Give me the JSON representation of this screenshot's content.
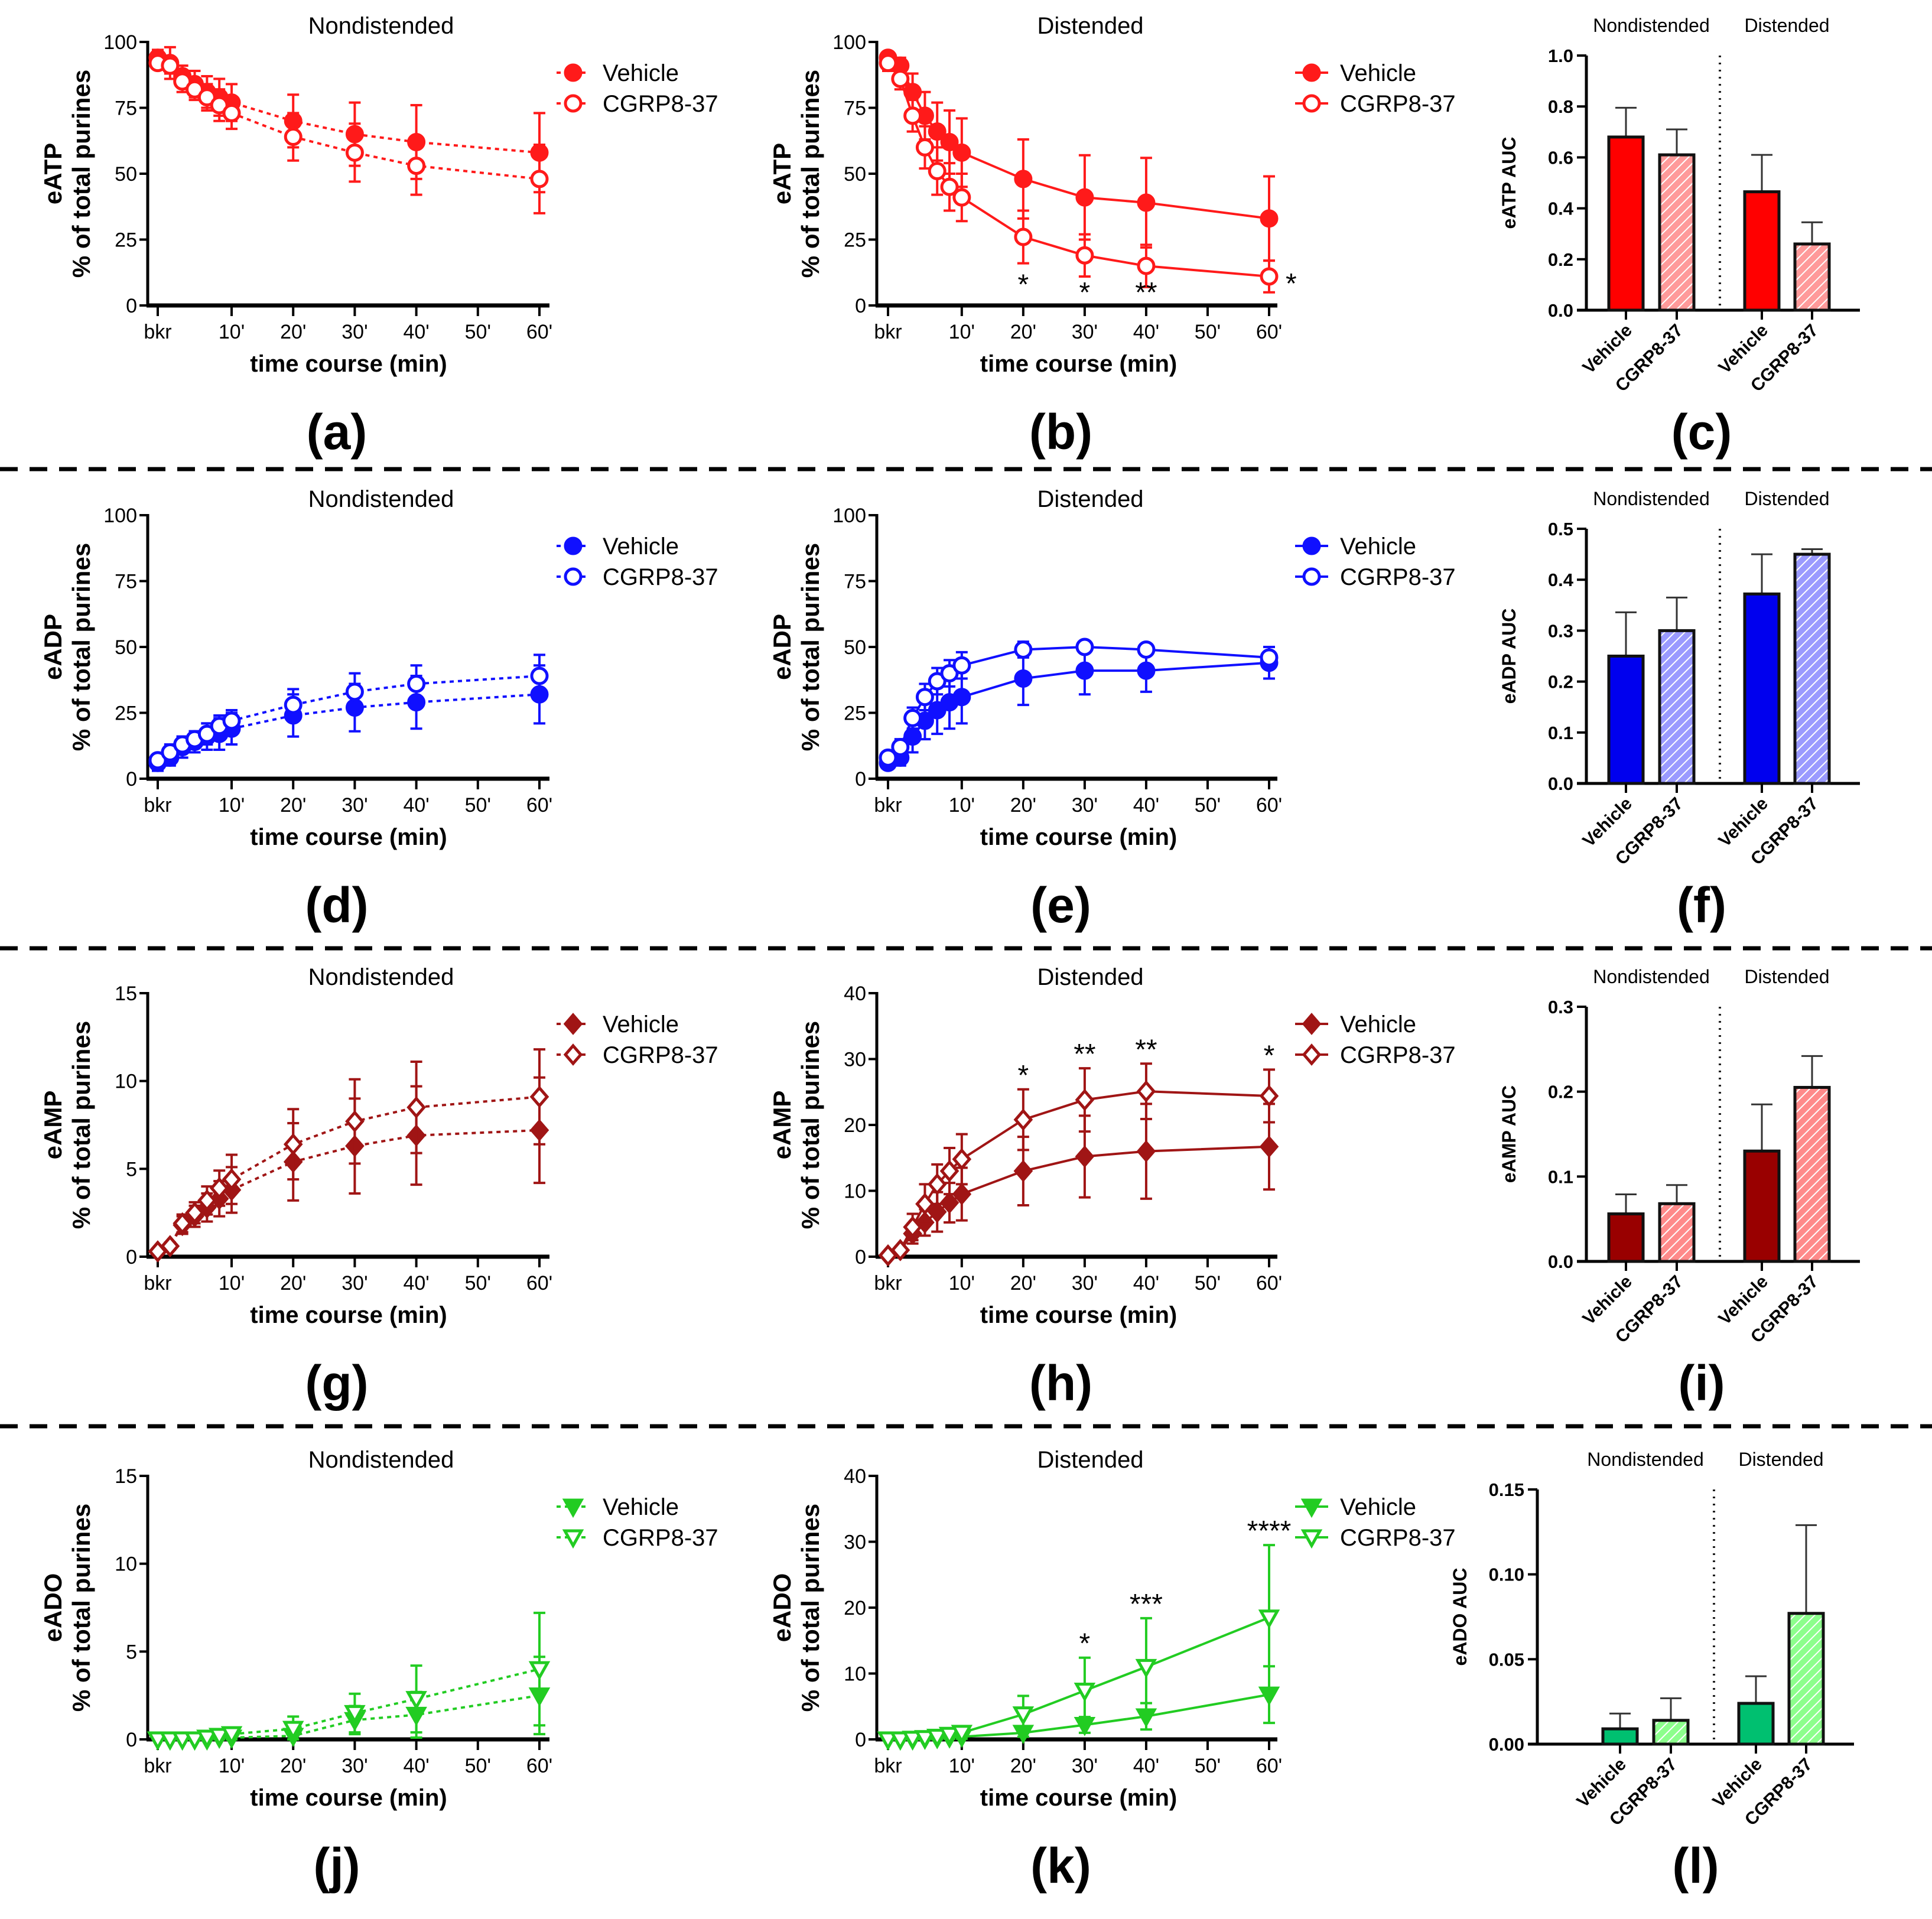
{
  "chart_data": [
    {
      "type": "line",
      "panel_label": "(a)",
      "title": "Nondistended",
      "ylabel": "eATP",
      "ylabel2": "% of total purines",
      "xlabel": "time course (min)",
      "x": [
        -2,
        0,
        2,
        4,
        6,
        8,
        10,
        20,
        30,
        40,
        60
      ],
      "x_ticks": [
        -2,
        10,
        20,
        30,
        40,
        50,
        60
      ],
      "x_tick_labels": [
        "bkr",
        "10'",
        "20'",
        "30'",
        "40'",
        "50'",
        "60'"
      ],
      "ylim": [
        0,
        100
      ],
      "yticks": [
        0,
        25,
        50,
        75,
        100
      ],
      "line_style": "dotted",
      "marker": "circle",
      "color": "#ff1a1a",
      "series": [
        {
          "name": "Vehicle",
          "filled": true,
          "values": [
            94,
            92,
            87,
            84,
            81,
            79,
            77,
            70,
            65,
            62,
            58
          ],
          "sem": [
            3,
            6,
            4,
            5,
            6,
            7,
            7,
            10,
            12,
            14,
            15
          ]
        },
        {
          "name": "CGRP8-37",
          "filled": false,
          "values": [
            92,
            91,
            85,
            82,
            79,
            76,
            73,
            64,
            58,
            53,
            48
          ],
          "sem": [
            2,
            3,
            4,
            4,
            5,
            6,
            6,
            9,
            11,
            11,
            13
          ]
        }
      ],
      "annotations": []
    },
    {
      "type": "line",
      "panel_label": "(b)",
      "title": "Distended",
      "ylabel": "eATP",
      "ylabel2": "% of total purines",
      "xlabel": "time course (min)",
      "x": [
        -2,
        0,
        2,
        4,
        6,
        8,
        10,
        20,
        30,
        40,
        60
      ],
      "x_ticks": [
        -2,
        10,
        20,
        30,
        40,
        50,
        60
      ],
      "x_tick_labels": [
        "bkr",
        "10'",
        "20'",
        "30'",
        "40'",
        "50'",
        "60'"
      ],
      "ylim": [
        0,
        100
      ],
      "yticks": [
        0,
        25,
        50,
        75,
        100
      ],
      "line_style": "solid",
      "marker": "circle",
      "color": "#ff1a1a",
      "series": [
        {
          "name": "Vehicle",
          "filled": true,
          "values": [
            94,
            91,
            81,
            72,
            66,
            62,
            58,
            48,
            41,
            39,
            33
          ],
          "sem": [
            2,
            3,
            7,
            9,
            11,
            12,
            13,
            15,
            16,
            17,
            16
          ]
        },
        {
          "name": "CGRP8-37",
          "filled": false,
          "values": [
            92,
            86,
            72,
            60,
            51,
            45,
            41,
            26,
            19,
            15,
            11
          ],
          "sem": [
            3,
            4,
            6,
            8,
            9,
            9,
            9,
            10,
            8,
            8,
            6
          ]
        }
      ],
      "annotations": [
        {
          "x": 20,
          "text": "*",
          "position": "below"
        },
        {
          "x": 30,
          "text": "*",
          "position": "below"
        },
        {
          "x": 40,
          "text": "**",
          "position": "below"
        },
        {
          "x": 60,
          "text": "*",
          "position": "right"
        }
      ]
    },
    {
      "type": "bar",
      "panel_label": "(c)",
      "ylabel": "eATP AUC",
      "groups": [
        "Nondistended",
        "Distended"
      ],
      "categories": [
        "Vehicle",
        "CGRP8-37",
        "Vehicle",
        "CGRP8-37"
      ],
      "values": [
        0.68,
        0.61,
        0.465,
        0.26
      ],
      "sem": [
        0.115,
        0.1,
        0.145,
        0.085
      ],
      "hatched": [
        false,
        true,
        false,
        true
      ],
      "ylim": [
        0,
        1.0
      ],
      "yticks": [
        0,
        0.2,
        0.4,
        0.6,
        0.8,
        1.0
      ],
      "ytick_labels": [
        "0.0",
        "0.2",
        "0.4",
        "0.6",
        "0.8",
        "1.0"
      ],
      "color": "#ff0000",
      "hatch_color": "#ff9a9a"
    },
    {
      "type": "line",
      "panel_label": "(d)",
      "title": "Nondistended",
      "ylabel": "eADP",
      "ylabel2": "% of total purines",
      "xlabel": "time course (min)",
      "x": [
        -2,
        0,
        2,
        4,
        6,
        8,
        10,
        20,
        30,
        40,
        60
      ],
      "x_ticks": [
        -2,
        10,
        20,
        30,
        40,
        50,
        60
      ],
      "x_tick_labels": [
        "bkr",
        "10'",
        "20'",
        "30'",
        "40'",
        "50'",
        "60'"
      ],
      "ylim": [
        0,
        100
      ],
      "yticks": [
        0,
        25,
        50,
        75,
        100
      ],
      "line_style": "dotted",
      "marker": "circle",
      "color": "#1010ff",
      "series": [
        {
          "name": "Vehicle",
          "filled": true,
          "values": [
            6,
            8,
            12,
            14,
            16,
            17,
            19,
            24,
            27,
            29,
            32
          ],
          "sem": [
            3,
            3,
            4,
            4,
            5,
            6,
            6,
            8,
            9,
            10,
            11
          ]
        },
        {
          "name": "CGRP8-37",
          "filled": false,
          "values": [
            7,
            10,
            13,
            15,
            17,
            20,
            22,
            28,
            33,
            36,
            39
          ],
          "sem": [
            2,
            3,
            3,
            3,
            4,
            4,
            4,
            6,
            7,
            7,
            8
          ]
        }
      ],
      "annotations": []
    },
    {
      "type": "line",
      "panel_label": "(e)",
      "title": "Distended",
      "ylabel": "eADP",
      "ylabel2": "% of total purines",
      "xlabel": "time course (min)",
      "x": [
        -2,
        0,
        2,
        4,
        6,
        8,
        10,
        20,
        30,
        40,
        60
      ],
      "x_ticks": [
        -2,
        10,
        20,
        30,
        40,
        50,
        60
      ],
      "x_tick_labels": [
        "bkr",
        "10'",
        "20'",
        "30'",
        "40'",
        "50'",
        "60'"
      ],
      "ylim": [
        0,
        100
      ],
      "yticks": [
        0,
        25,
        50,
        75,
        100
      ],
      "line_style": "solid",
      "marker": "circle",
      "color": "#1010ff",
      "series": [
        {
          "name": "Vehicle",
          "filled": true,
          "values": [
            6,
            8,
            16,
            22,
            26,
            29,
            31,
            38,
            41,
            41,
            44
          ],
          "sem": [
            2,
            3,
            6,
            7,
            9,
            10,
            10,
            10,
            9,
            8,
            6
          ]
        },
        {
          "name": "CGRP8-37",
          "filled": false,
          "values": [
            8,
            12,
            23,
            31,
            37,
            40,
            43,
            49,
            50,
            49,
            46
          ],
          "sem": [
            2,
            3,
            4,
            5,
            5,
            5,
            5,
            3,
            2,
            2,
            4
          ]
        }
      ],
      "annotations": []
    },
    {
      "type": "bar",
      "panel_label": "(f)",
      "ylabel": "eADP AUC",
      "groups": [
        "Nondistended",
        "Distended"
      ],
      "categories": [
        "Vehicle",
        "CGRP8-37",
        "Vehicle",
        "CGRP8-37"
      ],
      "values": [
        0.25,
        0.3,
        0.372,
        0.45
      ],
      "sem": [
        0.086,
        0.065,
        0.078,
        0.01
      ],
      "hatched": [
        false,
        true,
        false,
        true
      ],
      "ylim": [
        0,
        0.5
      ],
      "yticks": [
        0,
        0.1,
        0.2,
        0.3,
        0.4,
        0.5
      ],
      "ytick_labels": [
        "0.0",
        "0.1",
        "0.2",
        "0.3",
        "0.4",
        "0.5"
      ],
      "color": "#0000ee",
      "hatch_color": "#9a9aff"
    },
    {
      "type": "line",
      "panel_label": "(g)",
      "title": "Nondistended",
      "ylabel": "eAMP",
      "ylabel2": "% of total purines",
      "xlabel": "time course (min)",
      "x": [
        -2,
        0,
        2,
        4,
        6,
        8,
        10,
        20,
        30,
        40,
        60
      ],
      "x_ticks": [
        -2,
        10,
        20,
        30,
        40,
        50,
        60
      ],
      "x_tick_labels": [
        "bkr",
        "10'",
        "20'",
        "30'",
        "40'",
        "50'",
        "60'"
      ],
      "ylim": [
        0,
        15
      ],
      "yticks": [
        0,
        5,
        10,
        15
      ],
      "line_style": "dotted",
      "marker": "diamond",
      "color": "#a01515",
      "series": [
        {
          "name": "Vehicle",
          "filled": true,
          "values": [
            0.3,
            0.6,
            1.8,
            2.3,
            2.8,
            3.3,
            3.8,
            5.4,
            6.3,
            6.9,
            7.2
          ],
          "sem": [
            0.1,
            0.2,
            0.5,
            0.6,
            0.8,
            1.0,
            1.3,
            2.2,
            2.7,
            2.8,
            3.0
          ]
        },
        {
          "name": "CGRP8-37",
          "filled": false,
          "values": [
            0.3,
            0.6,
            1.9,
            2.5,
            3.2,
            3.9,
            4.4,
            6.4,
            7.7,
            8.5,
            9.1
          ],
          "sem": [
            0.1,
            0.2,
            0.5,
            0.6,
            0.8,
            1.0,
            1.4,
            2.0,
            2.4,
            2.6,
            2.7
          ]
        }
      ],
      "annotations": []
    },
    {
      "type": "line",
      "panel_label": "(h)",
      "title": "Distended",
      "ylabel": "eAMP",
      "ylabel2": "% of total purines",
      "xlabel": "time course (min)",
      "x": [
        -2,
        0,
        2,
        4,
        6,
        8,
        10,
        20,
        30,
        40,
        60
      ],
      "x_ticks": [
        -2,
        10,
        20,
        30,
        40,
        50,
        60
      ],
      "x_tick_labels": [
        "bkr",
        "10'",
        "20'",
        "30'",
        "40'",
        "50'",
        "60'"
      ],
      "ylim": [
        0,
        40
      ],
      "yticks": [
        0,
        10,
        20,
        30,
        40
      ],
      "line_style": "solid",
      "marker": "diamond",
      "color": "#a01515",
      "series": [
        {
          "name": "Vehicle",
          "filled": true,
          "values": [
            0.2,
            1,
            3.5,
            5.2,
            6.8,
            8.2,
            9.5,
            13,
            15.2,
            16,
            16.7
          ],
          "sem": [
            0.1,
            0.5,
            1.5,
            2,
            3,
            3,
            4,
            5.2,
            6.2,
            7.2,
            6.5
          ]
        },
        {
          "name": "CGRP8-37",
          "filled": false,
          "values": [
            0.2,
            1,
            4.5,
            8,
            11,
            13,
            14.8,
            20.8,
            23.8,
            25.1,
            24.4
          ],
          "sem": [
            0.1,
            0.5,
            2,
            3,
            3,
            3.5,
            3.8,
            4.6,
            4.8,
            4.2,
            4
          ]
        }
      ],
      "annotations": [
        {
          "x": 20,
          "text": "*",
          "position": "above"
        },
        {
          "x": 30,
          "text": "**",
          "position": "above"
        },
        {
          "x": 40,
          "text": "**",
          "position": "above"
        },
        {
          "x": 60,
          "text": "*",
          "position": "above"
        }
      ]
    },
    {
      "type": "bar",
      "panel_label": "(i)",
      "ylabel": "eAMP AUC",
      "groups": [
        "Nondistended",
        "Distended"
      ],
      "categories": [
        "Vehicle",
        "CGRP8-37",
        "Vehicle",
        "CGRP8-37"
      ],
      "values": [
        0.056,
        0.068,
        0.13,
        0.205
      ],
      "sem": [
        0.023,
        0.022,
        0.055,
        0.037
      ],
      "hatched": [
        false,
        true,
        false,
        true
      ],
      "ylim": [
        0,
        0.3
      ],
      "yticks": [
        0,
        0.1,
        0.2,
        0.3
      ],
      "ytick_labels": [
        "0.0",
        "0.1",
        "0.2",
        "0.3"
      ],
      "color": "#990000",
      "hatch_color": "#ff8a8a"
    },
    {
      "type": "line",
      "panel_label": "(j)",
      "title": "Nondistended",
      "ylabel": "eADO",
      "ylabel2": "% of total purines",
      "xlabel": "time course (min)",
      "x": [
        -2,
        0,
        2,
        4,
        6,
        8,
        10,
        20,
        30,
        40,
        60
      ],
      "x_ticks": [
        -2,
        10,
        20,
        30,
        40,
        50,
        60
      ],
      "x_tick_labels": [
        "bkr",
        "10'",
        "20'",
        "30'",
        "40'",
        "50'",
        "60'"
      ],
      "ylim": [
        0,
        15
      ],
      "yticks": [
        0,
        5,
        10,
        15
      ],
      "line_style": "dotted",
      "marker": "triangle",
      "color": "#22cc22",
      "series": [
        {
          "name": "Vehicle",
          "filled": true,
          "values": [
            0,
            0,
            0,
            0,
            0,
            0.1,
            0.1,
            0.2,
            1.1,
            1.4,
            2.5
          ],
          "sem": [
            0.05,
            0.05,
            0.05,
            0.05,
            0.1,
            0.1,
            0.1,
            0.5,
            0.8,
            1.3,
            2.2
          ]
        },
        {
          "name": "CGRP8-37",
          "filled": false,
          "values": [
            0,
            0,
            0,
            0,
            0.1,
            0.2,
            0.3,
            0.6,
            1.5,
            2.3,
            4.0
          ],
          "sem": [
            0.05,
            0.05,
            0.05,
            0.1,
            0.1,
            0.1,
            0.1,
            0.7,
            1.1,
            1.9,
            3.2
          ]
        }
      ],
      "annotations": []
    },
    {
      "type": "line",
      "panel_label": "(k)",
      "title": "Distended",
      "ylabel": "eADO",
      "ylabel2": "% of total purines",
      "xlabel": "time course (min)",
      "x": [
        -2,
        0,
        2,
        4,
        6,
        8,
        10,
        20,
        30,
        40,
        60
      ],
      "x_ticks": [
        -2,
        10,
        20,
        30,
        40,
        50,
        60
      ],
      "x_tick_labels": [
        "bkr",
        "10'",
        "20'",
        "30'",
        "40'",
        "50'",
        "60'"
      ],
      "ylim": [
        0,
        40
      ],
      "yticks": [
        0,
        10,
        20,
        30,
        40
      ],
      "line_style": "solid",
      "marker": "triangle",
      "color": "#22cc22",
      "series": [
        {
          "name": "Vehicle",
          "filled": true,
          "values": [
            0,
            0,
            0,
            0.1,
            0.2,
            0.3,
            0.4,
            1.0,
            2.2,
            3.5,
            6.8
          ],
          "sem": [
            0.1,
            0.1,
            0.1,
            0.1,
            0.2,
            0.2,
            0.3,
            0.6,
            1.2,
            2.0,
            4.3
          ]
        },
        {
          "name": "CGRP8-37",
          "filled": false,
          "values": [
            0,
            0,
            0.1,
            0.2,
            0.4,
            0.7,
            1.0,
            3.8,
            7.4,
            11,
            18.5
          ],
          "sem": [
            0.1,
            0.1,
            0.1,
            0.2,
            0.3,
            0.4,
            0.6,
            2.8,
            5,
            7.4,
            11
          ]
        }
      ],
      "annotations": [
        {
          "x": 30,
          "text": "*",
          "position": "above"
        },
        {
          "x": 40,
          "text": "***",
          "position": "above"
        },
        {
          "x": 60,
          "text": "****",
          "position": "above"
        }
      ]
    },
    {
      "type": "bar",
      "panel_label": "(l)",
      "ylabel": "eADO AUC",
      "groups": [
        "Nondistended",
        "Distended"
      ],
      "categories": [
        "Vehicle",
        "CGRP8-37",
        "Vehicle",
        "CGRP8-37"
      ],
      "values": [
        0.009,
        0.014,
        0.024,
        0.077
      ],
      "sem": [
        0.009,
        0.013,
        0.016,
        0.052
      ],
      "hatched": [
        false,
        true,
        false,
        true
      ],
      "ylim": [
        0,
        0.15
      ],
      "yticks": [
        0,
        0.05,
        0.1,
        0.15
      ],
      "ytick_labels": [
        "0.00",
        "0.05",
        "0.10",
        "0.15"
      ],
      "color": "#00c070",
      "hatch_color": "#8cff8c"
    }
  ]
}
